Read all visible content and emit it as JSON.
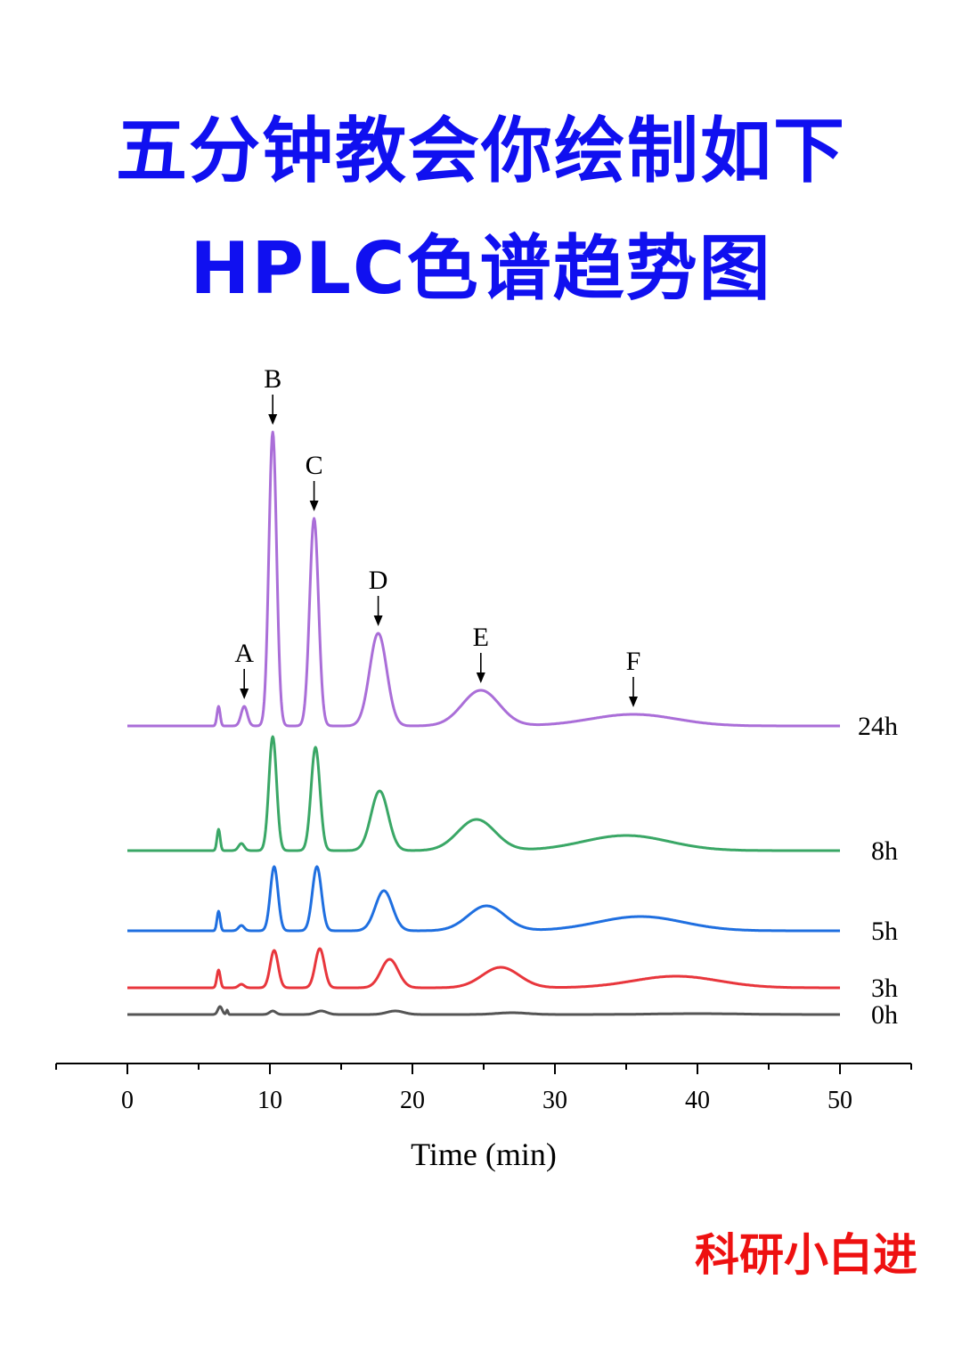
{
  "header": {
    "title_line1": "五分钟教会你绘制如下",
    "title_line2": "HPLC色谱趋势图"
  },
  "watermark": "科研小白进",
  "chart_data": {
    "type": "line",
    "xlabel": "Time (min)",
    "xlim": [
      -5,
      55
    ],
    "xticks": [
      0,
      10,
      20,
      30,
      40,
      50
    ],
    "grid": false,
    "series": [
      {
        "name": "0h",
        "color": "#555555",
        "baseline": 4,
        "peaks": [
          [
            6.5,
            0.15,
            9
          ],
          [
            7.0,
            0.06,
            5
          ],
          [
            10.2,
            0.22,
            4
          ],
          [
            13.6,
            0.4,
            4
          ],
          [
            18.8,
            0.6,
            4
          ],
          [
            27.0,
            1.1,
            2
          ],
          [
            40.0,
            3.0,
            1
          ]
        ]
      },
      {
        "name": "3h",
        "color": "#e8363c",
        "baseline": 34,
        "peaks": [
          [
            6.4,
            0.12,
            20
          ],
          [
            8.0,
            0.2,
            4
          ],
          [
            10.3,
            0.28,
            42
          ],
          [
            13.5,
            0.32,
            44
          ],
          [
            18.4,
            0.6,
            32
          ],
          [
            26.2,
            1.3,
            23
          ],
          [
            38.5,
            3.0,
            13
          ]
        ]
      },
      {
        "name": "5h",
        "color": "#1f6fe0",
        "baseline": 98,
        "peaks": [
          [
            6.4,
            0.11,
            22
          ],
          [
            8.0,
            0.2,
            6
          ],
          [
            10.3,
            0.27,
            72
          ],
          [
            13.3,
            0.32,
            72
          ],
          [
            18.0,
            0.6,
            45
          ],
          [
            25.2,
            1.3,
            28
          ],
          [
            36.0,
            3.0,
            16
          ]
        ]
      },
      {
        "name": "8h",
        "color": "#3aa766",
        "baseline": 188,
        "peaks": [
          [
            6.4,
            0.11,
            24
          ],
          [
            8.0,
            0.2,
            8
          ],
          [
            10.2,
            0.27,
            128
          ],
          [
            13.2,
            0.31,
            116
          ],
          [
            17.7,
            0.6,
            67
          ],
          [
            24.5,
            1.3,
            35
          ],
          [
            35.0,
            3.0,
            17
          ]
        ]
      },
      {
        "name": "24h",
        "color": "#aa6ed8",
        "baseline": 328,
        "peaks": [
          [
            6.4,
            0.11,
            22
          ],
          [
            8.2,
            0.22,
            22
          ],
          [
            10.2,
            0.27,
            330
          ],
          [
            13.1,
            0.31,
            233
          ],
          [
            17.6,
            0.6,
            104
          ],
          [
            24.8,
            1.3,
            40
          ],
          [
            35.5,
            3.0,
            13
          ]
        ]
      }
    ],
    "annotations": [
      {
        "label": "A",
        "x": 8.2
      },
      {
        "label": "B",
        "x": 10.2
      },
      {
        "label": "C",
        "x": 13.1
      },
      {
        "label": "D",
        "x": 17.6
      },
      {
        "label": "E",
        "x": 24.8
      },
      {
        "label": "F",
        "x": 35.5
      }
    ]
  }
}
